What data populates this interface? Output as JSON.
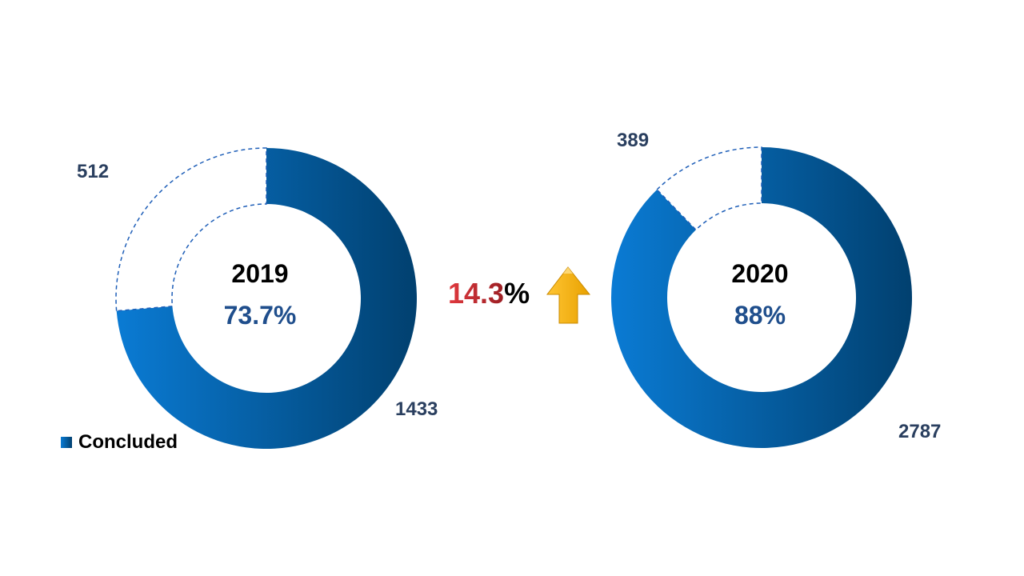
{
  "colors": {
    "concluded_light": "#0a7bd4",
    "concluded_dark": "#01406f",
    "remaining_outline": "#1f5fb8",
    "center_percent": "#1f4e8c",
    "change_value": "#e0393e",
    "change_value_dark": "#9c1f24",
    "arrow_light": "#ffc533",
    "arrow_dark": "#e8a100"
  },
  "chart_data": [
    {
      "type": "pie",
      "variant": "donut",
      "center_title": "2019",
      "center_value": "73.7%",
      "slices": [
        {
          "name": "Concluded",
          "value": 1433,
          "label": "1433"
        },
        {
          "name": "",
          "value": 512,
          "label": "512"
        }
      ]
    },
    {
      "type": "pie",
      "variant": "donut",
      "center_title": "2020",
      "center_value": "88%",
      "slices": [
        {
          "name": "Concluded",
          "value": 2787,
          "label": "2787"
        },
        {
          "name": "",
          "value": 389,
          "label": "389"
        }
      ]
    }
  ],
  "legend": {
    "label": "Concluded",
    "position": "bottom-left"
  },
  "change": {
    "value": "14.3",
    "unit": "%",
    "icon": "up-arrow-icon"
  }
}
